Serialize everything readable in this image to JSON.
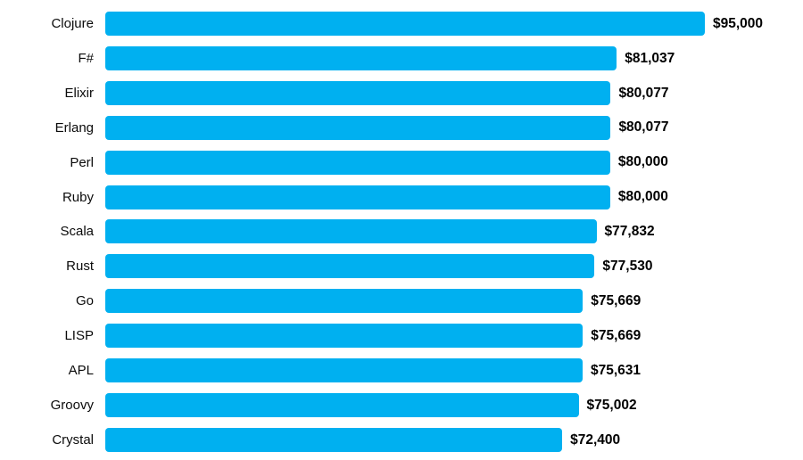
{
  "chart_data": {
    "type": "bar",
    "orientation": "horizontal",
    "title": "",
    "xlabel": "",
    "ylabel": "",
    "xlim": [
      0,
      95000
    ],
    "grid": false,
    "legend": false,
    "bar_color": "#00b0f0",
    "categories": [
      "Clojure",
      "F#",
      "Elixir",
      "Erlang",
      "Perl",
      "Ruby",
      "Scala",
      "Rust",
      "Go",
      "LISP",
      "APL",
      "Groovy",
      "Crystal"
    ],
    "values": [
      95000,
      81037,
      80077,
      80077,
      80000,
      80000,
      77832,
      77530,
      75669,
      75669,
      75631,
      75002,
      72400
    ],
    "value_labels": [
      "$95,000",
      "$81,037",
      "$80,077",
      "$80,077",
      "$80,000",
      "$80,000",
      "$77,832",
      "$77,530",
      "$75,669",
      "$75,669",
      "$75,631",
      "$75,002",
      "$72,400"
    ]
  }
}
